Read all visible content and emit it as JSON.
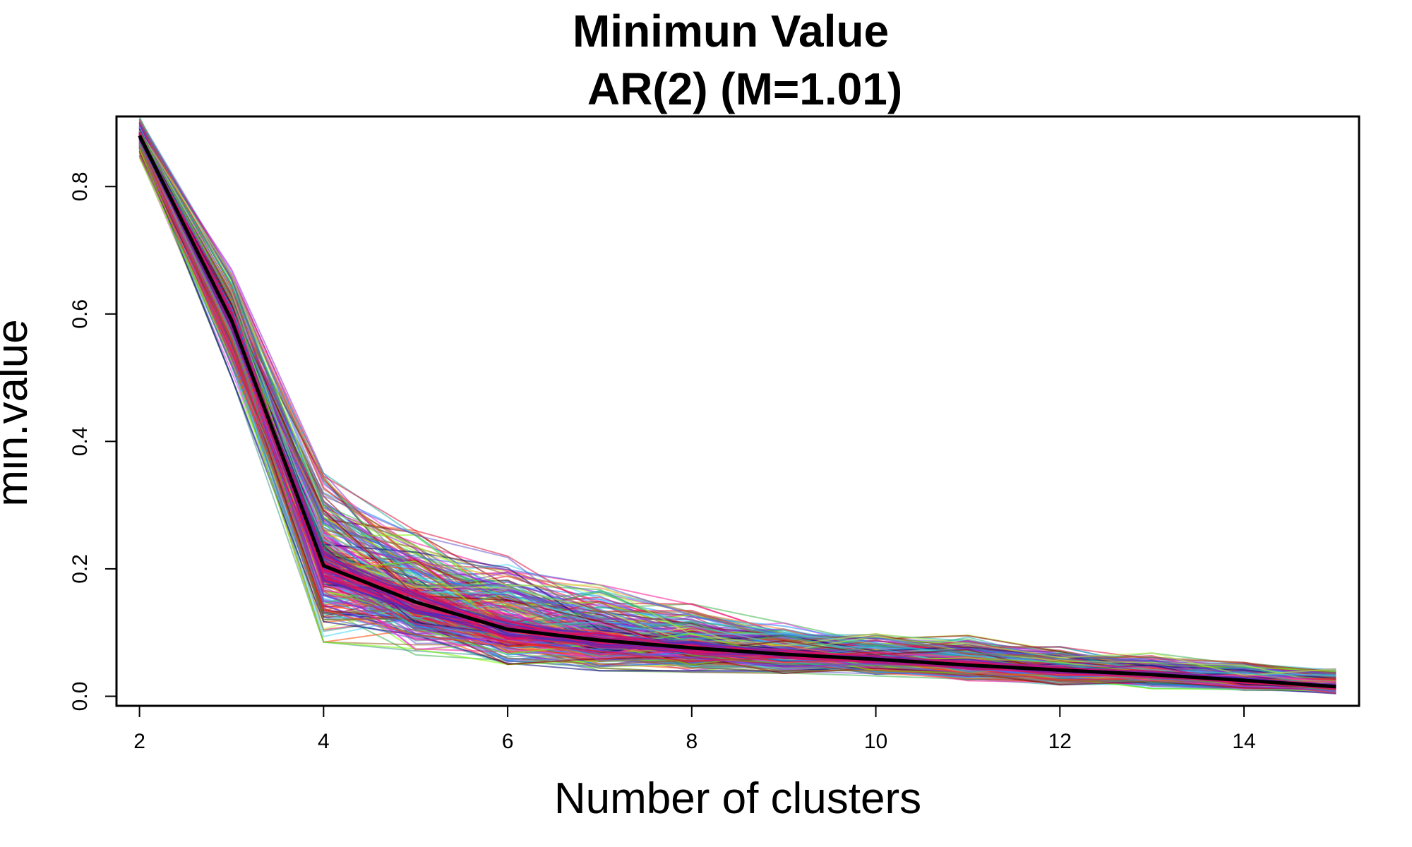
{
  "chart_data": {
    "type": "line",
    "title": "Minimun Value",
    "subtitle": "AR(2) (M=1.01)",
    "xlabel": "Number of clusters",
    "ylabel": "min.value",
    "x": [
      2,
      3,
      4,
      5,
      6,
      7,
      8,
      9,
      10,
      11,
      12,
      13,
      14,
      15
    ],
    "xlim": [
      1.75,
      15.25
    ],
    "ylim": [
      -0.015,
      0.91
    ],
    "x_ticks": [
      2,
      4,
      6,
      8,
      10,
      12,
      14
    ],
    "x_tick_labels": [
      "2",
      "4",
      "6",
      "8",
      "10",
      "12",
      "14"
    ],
    "y_ticks": [
      0.0,
      0.2,
      0.4,
      0.6,
      0.8
    ],
    "y_tick_labels": [
      "0.0",
      "0.2",
      "0.4",
      "0.6",
      "0.8"
    ],
    "grid": false,
    "mean_series": {
      "name": "mean",
      "color": "#000000",
      "values": [
        0.88,
        0.59,
        0.205,
        0.148,
        0.105,
        0.088,
        0.076,
        0.066,
        0.058,
        0.049,
        0.041,
        0.034,
        0.025,
        0.015
      ]
    },
    "band_series": {
      "name": "simulations",
      "count": 300,
      "description": "many colored simulation traces around the mean",
      "upper": [
        0.91,
        0.67,
        0.35,
        0.26,
        0.22,
        0.175,
        0.145,
        0.115,
        0.098,
        0.096,
        0.078,
        0.068,
        0.053,
        0.043
      ],
      "lower": [
        0.845,
        0.5,
        0.085,
        0.065,
        0.05,
        0.04,
        0.038,
        0.036,
        0.032,
        0.024,
        0.018,
        0.012,
        0.008,
        0.004
      ]
    },
    "palette": [
      "#e6194b",
      "#3cb44b",
      "#4363d8",
      "#f58231",
      "#911eb4",
      "#42d4f4",
      "#f032e6",
      "#bfef45",
      "#469990",
      "#9A6324",
      "#800000",
      "#000075",
      "#7cfc00",
      "#1e90ff",
      "#ff1493",
      "#8a2be2",
      "#20b2aa",
      "#ff4500",
      "#6a5acd",
      "#dc143c"
    ]
  }
}
